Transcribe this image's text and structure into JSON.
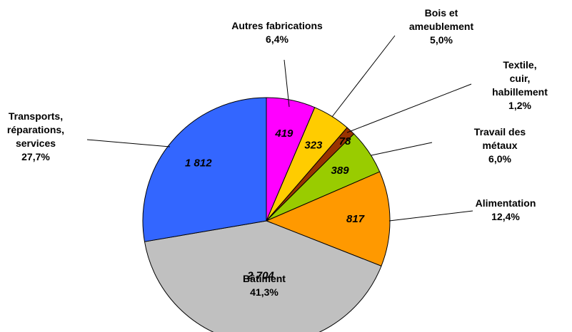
{
  "chart_data": {
    "type": "pie",
    "categories": [
      "Autres fabrications",
      "Bois et\nameublement",
      "Textile, cuir,\nhabillement",
      "Travail des métaux",
      "Alimentation",
      "Bâtiment",
      "Transports,\nréparations,\nservices"
    ],
    "values": [
      419,
      323,
      78,
      389,
      817,
      2704,
      1812
    ],
    "value_labels": [
      "419",
      "323",
      "78",
      "389",
      "817",
      "2 704",
      "1 812"
    ],
    "percent_labels": [
      "6,4%",
      "5,0%",
      "1,2%",
      "6,0%",
      "12,4%",
      "41,3%",
      "27,7%"
    ],
    "colors": [
      "#ff00ff",
      "#ffcc00",
      "#993300",
      "#99cc00",
      "#ff9900",
      "#c0c0c0",
      "#3366ff"
    ]
  }
}
